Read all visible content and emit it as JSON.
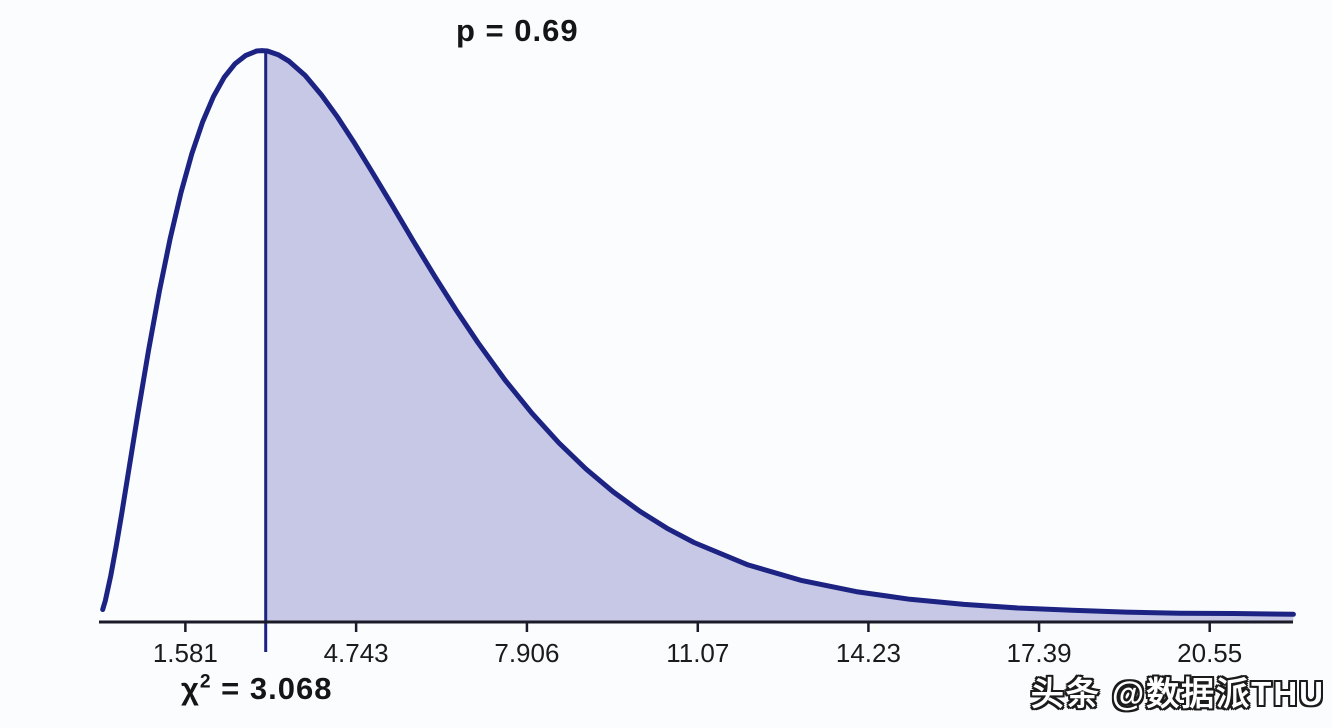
{
  "page": {
    "background": "#fbfcfe"
  },
  "watermark": {
    "text": "头条 @数据派THU"
  },
  "chart_data": {
    "type": "area",
    "title": "",
    "description": "chi-square density curve with shaded upper-tail area",
    "p_label": "p = 0.69",
    "p_value": 0.69,
    "statistic_label": {
      "chi": "χ",
      "sup": "2",
      "eq": " = 3.068"
    },
    "statistic_value": 3.068,
    "shaded_region": {
      "from": 3.068,
      "to": 22.1
    },
    "x_range": [
      0,
      22.1
    ],
    "y_range": [
      0,
      0.16
    ],
    "x_ticks": [
      1.581,
      4.743,
      7.906,
      11.07,
      14.23,
      17.39,
      20.55
    ],
    "x_tick_labels": [
      "1.581",
      "4.743",
      "7.906",
      "11.07",
      "14.23",
      "17.39",
      "20.55"
    ],
    "grid": false,
    "legend": false,
    "colors": {
      "curve": "#1c2382",
      "fill": "#c6c8e6",
      "axis": "#1a1a28",
      "text": "#1b1b1b"
    },
    "curve_points": [
      [
        0.05,
        0.0015
      ],
      [
        0.1,
        0.004
      ],
      [
        0.2,
        0.0108
      ],
      [
        0.3,
        0.0188
      ],
      [
        0.4,
        0.0275
      ],
      [
        0.5,
        0.0366
      ],
      [
        0.7,
        0.0549
      ],
      [
        0.9,
        0.0724
      ],
      [
        1.1,
        0.0885
      ],
      [
        1.3,
        0.1029
      ],
      [
        1.5,
        0.1154
      ],
      [
        1.7,
        0.126
      ],
      [
        1.9,
        0.1347
      ],
      [
        2.1,
        0.1416
      ],
      [
        2.3,
        0.1469
      ],
      [
        2.5,
        0.1506
      ],
      [
        2.7,
        0.1529
      ],
      [
        2.9,
        0.1541
      ],
      [
        3.0,
        0.1542
      ],
      [
        3.1,
        0.1541
      ],
      [
        3.3,
        0.1531
      ],
      [
        3.5,
        0.1513
      ],
      [
        3.8,
        0.1474
      ],
      [
        4.1,
        0.1421
      ],
      [
        4.4,
        0.136
      ],
      [
        4.7,
        0.1292
      ],
      [
        5.0,
        0.122
      ],
      [
        5.4,
        0.1122
      ],
      [
        5.8,
        0.1022
      ],
      [
        6.2,
        0.0925
      ],
      [
        6.6,
        0.0832
      ],
      [
        7.0,
        0.0744
      ],
      [
        7.5,
        0.0642
      ],
      [
        8.0,
        0.0551
      ],
      [
        8.5,
        0.047
      ],
      [
        9.0,
        0.0399
      ],
      [
        9.5,
        0.0337
      ],
      [
        10.0,
        0.0283
      ],
      [
        10.5,
        0.0237
      ],
      [
        11.0,
        0.0198
      ],
      [
        12.0,
        0.0137
      ],
      [
        13.0,
        0.0094
      ],
      [
        14.0,
        0.0064
      ],
      [
        15.0,
        0.0043
      ],
      [
        16.0,
        0.0029
      ],
      [
        17.0,
        0.0019
      ],
      [
        18.0,
        0.0013
      ],
      [
        19.0,
        0.0008
      ],
      [
        20.0,
        0.0005
      ],
      [
        21.0,
        0.0004
      ],
      [
        22.1,
        0.0002
      ]
    ]
  }
}
